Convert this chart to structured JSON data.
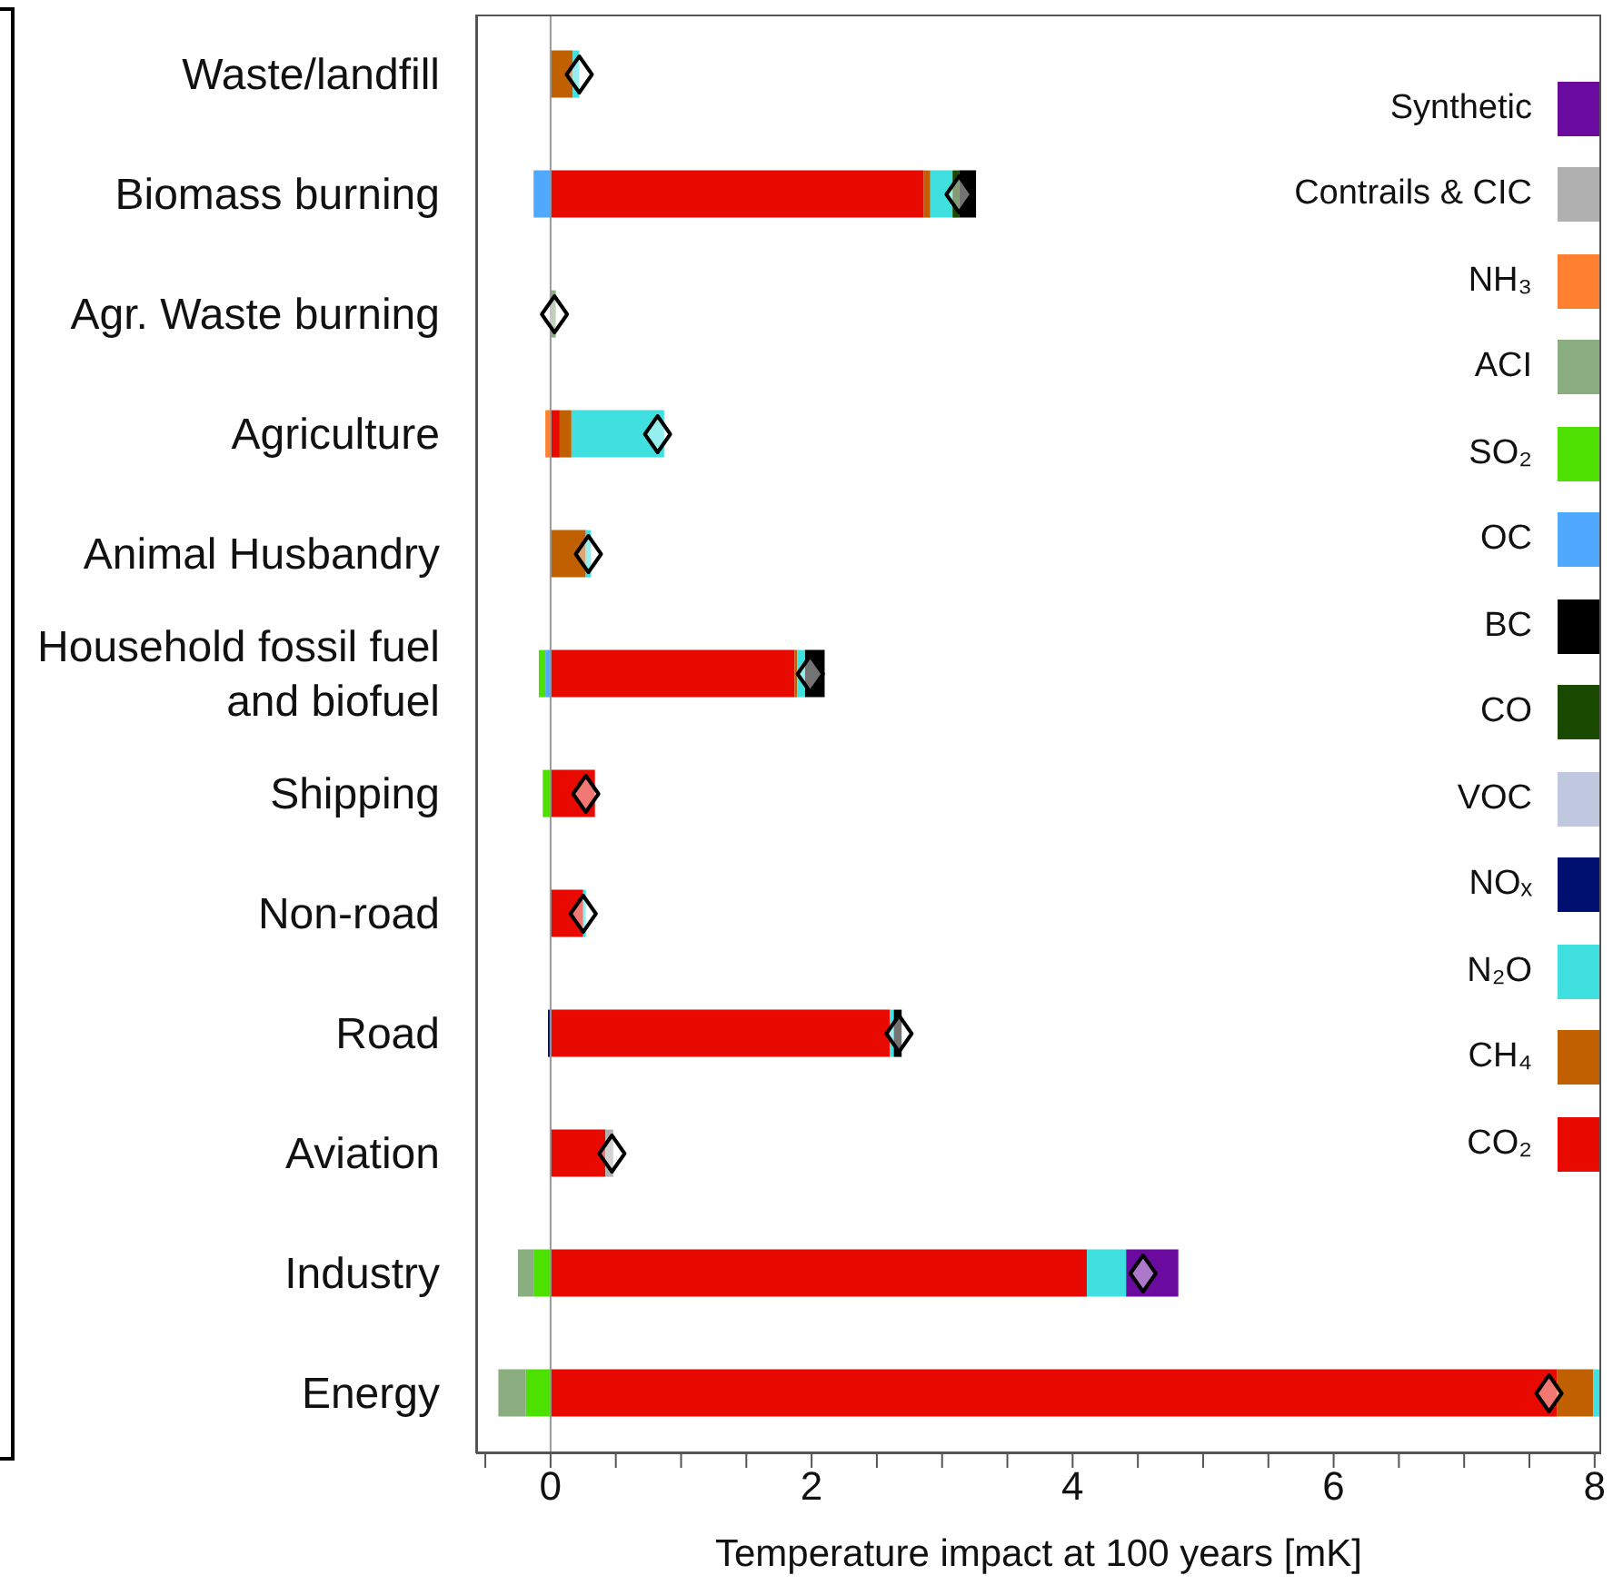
{
  "chart_data": {
    "type": "bar",
    "orientation": "horizontal",
    "stacked": true,
    "xlabel": "Temperature impact at 100 years [mK]",
    "categories": [
      "Waste/landfill",
      "Biomass burning",
      "Agr. Waste burning",
      "Agriculture",
      "Animal Husbandry",
      "Household fossil fuel and biofuel",
      "Shipping",
      "Non-road",
      "Road",
      "Aviation",
      "Industry",
      "Energy"
    ],
    "xlim": [
      -0.57,
      8.05
    ],
    "xticks": [
      {
        "value": -0.5,
        "label": null
      },
      0,
      {
        "value": 0.5,
        "label": null
      },
      {
        "value": 1,
        "label": null
      },
      {
        "value": 1.5,
        "label": null
      },
      2,
      {
        "value": 2.5,
        "label": null
      },
      {
        "value": 3,
        "label": null
      },
      {
        "value": 3.5,
        "label": null
      },
      4,
      {
        "value": 4.5,
        "label": null
      },
      {
        "value": 5,
        "label": null
      },
      {
        "value": 5.5,
        "label": null
      },
      6,
      {
        "value": 6.5,
        "label": null
      },
      {
        "value": 7,
        "label": null
      },
      {
        "value": 7.5,
        "label": null
      },
      8
    ],
    "legend": "top right",
    "ref_lines": [
      {
        "axis": "x",
        "value": 0,
        "color": "#999999"
      }
    ],
    "series": [
      {
        "name": "CO₂",
        "color": "#e80a00",
        "values": [
          null,
          2.86,
          null,
          0.07,
          null,
          1.87,
          0.34,
          0.25,
          2.6,
          0.42,
          4.11,
          7.71
        ]
      },
      {
        "name": "CH₄",
        "color": "#c06000",
        "values": [
          0.17,
          0.05,
          null,
          0.09,
          0.27,
          0.02,
          null,
          null,
          null,
          null,
          null,
          0.28
        ]
      },
      {
        "name": "N₂O",
        "color": "#40e0e0",
        "values": [
          0.05,
          0.17,
          null,
          0.71,
          0.04,
          0.06,
          null,
          0.02,
          0.03,
          null,
          0.3,
          0.05
        ]
      },
      {
        "name": "NOₓ",
        "color": "#001070",
        "values": [
          null,
          null,
          null,
          null,
          null,
          null,
          null,
          null,
          -0.02,
          null,
          null,
          null
        ]
      },
      {
        "name": "VOC",
        "color": "#c0c8e0",
        "values": [
          null,
          null,
          null,
          null,
          null,
          null,
          null,
          null,
          null,
          null,
          null,
          null
        ]
      },
      {
        "name": "CO",
        "color": "#1a4a00",
        "values": [
          null,
          0.05,
          null,
          null,
          null,
          null,
          null,
          null,
          null,
          null,
          null,
          null
        ]
      },
      {
        "name": "BC",
        "color": "#000000",
        "values": [
          null,
          0.13,
          null,
          null,
          null,
          0.15,
          null,
          null,
          0.06,
          null,
          null,
          null
        ]
      },
      {
        "name": "OC",
        "color": "#50a8ff",
        "values": [
          null,
          -0.13,
          null,
          null,
          null,
          -0.04,
          null,
          null,
          null,
          null,
          null,
          null
        ]
      },
      {
        "name": "SO₂",
        "color": "#4ee000",
        "values": [
          null,
          null,
          null,
          null,
          null,
          -0.05,
          -0.06,
          null,
          null,
          null,
          -0.13,
          -0.19
        ]
      },
      {
        "name": "ACI",
        "color": "#8aae80",
        "values": [
          null,
          null,
          0.04,
          null,
          null,
          null,
          null,
          null,
          null,
          null,
          -0.12,
          -0.21
        ]
      },
      {
        "name": "NH₃",
        "color": "#ff8030",
        "values": [
          null,
          null,
          null,
          -0.04,
          null,
          null,
          null,
          null,
          null,
          null,
          null,
          null
        ]
      },
      {
        "name": "Contrails & CIC",
        "color": "#b0b0b0",
        "values": [
          null,
          null,
          null,
          null,
          null,
          null,
          null,
          null,
          null,
          0.06,
          null,
          null
        ]
      },
      {
        "name": "Synthetic",
        "color": "#6a0a9e",
        "values": [
          null,
          null,
          null,
          null,
          null,
          null,
          null,
          null,
          null,
          null,
          0.4,
          null
        ]
      },
      {
        "type": "scatter",
        "color": "#ffffff",
        "marker": "diamond",
        "values": [
          0.22,
          3.13,
          0.03,
          0.82,
          0.29,
          1.99,
          0.27,
          0.25,
          2.67,
          0.47,
          4.54,
          7.65
        ]
      }
    ]
  }
}
